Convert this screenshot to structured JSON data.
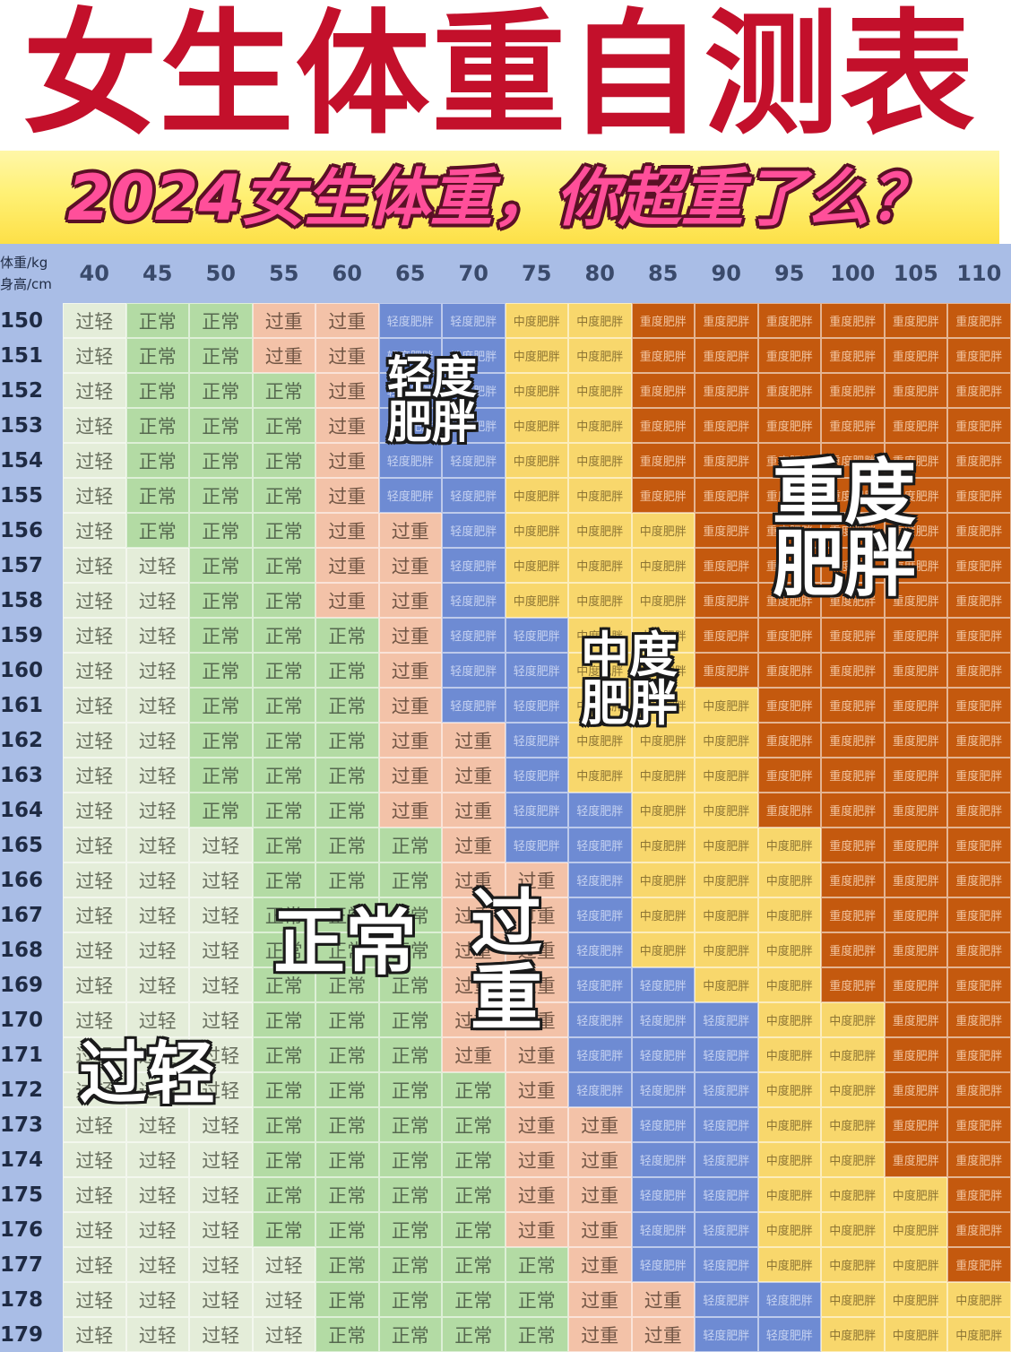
{
  "title": "女生体重自测表",
  "subtitle": "2024女生体重，你超重了么？",
  "table": {
    "corner": {
      "weight_label": "体重/kg",
      "height_label": "身高/cm"
    },
    "weights": [
      "40",
      "45",
      "50",
      "55",
      "60",
      "65",
      "70",
      "75",
      "80",
      "85",
      "90",
      "95",
      "100",
      "105",
      "110"
    ],
    "heights": [
      "150",
      "151",
      "152",
      "153",
      "154",
      "155",
      "156",
      "157",
      "158",
      "159",
      "160",
      "161",
      "162",
      "163",
      "164",
      "165",
      "166",
      "167",
      "168",
      "169",
      "170",
      "171",
      "172",
      "173",
      "174",
      "175",
      "176",
      "177",
      "178",
      "179"
    ],
    "categories": [
      "过轻",
      "正常",
      "过重",
      "轻度肥胖",
      "中度肥胖",
      "重度肥胖"
    ],
    "category_colors": [
      "#e4edd9",
      "#b3dba4",
      "#f3c2a8",
      "#6e8bd3",
      "#f8d76c",
      "#c4590e"
    ],
    "header_color": "#a9bde6",
    "grid": [
      [
        0,
        1,
        1,
        2,
        2,
        3,
        3,
        4,
        4,
        5,
        5,
        5,
        5,
        5,
        5
      ],
      [
        0,
        1,
        1,
        2,
        2,
        3,
        3,
        4,
        4,
        5,
        5,
        5,
        5,
        5,
        5
      ],
      [
        0,
        1,
        1,
        1,
        2,
        3,
        3,
        4,
        4,
        5,
        5,
        5,
        5,
        5,
        5
      ],
      [
        0,
        1,
        1,
        1,
        2,
        3,
        3,
        4,
        4,
        5,
        5,
        5,
        5,
        5,
        5
      ],
      [
        0,
        1,
        1,
        1,
        2,
        3,
        3,
        4,
        4,
        5,
        5,
        5,
        5,
        5,
        5
      ],
      [
        0,
        1,
        1,
        1,
        2,
        3,
        3,
        4,
        4,
        5,
        5,
        5,
        5,
        5,
        5
      ],
      [
        0,
        1,
        1,
        1,
        2,
        2,
        3,
        4,
        4,
        4,
        5,
        5,
        5,
        5,
        5
      ],
      [
        0,
        0,
        1,
        1,
        2,
        2,
        3,
        4,
        4,
        4,
        5,
        5,
        5,
        5,
        5
      ],
      [
        0,
        0,
        1,
        1,
        2,
        2,
        3,
        4,
        4,
        4,
        5,
        5,
        5,
        5,
        5
      ],
      [
        0,
        0,
        1,
        1,
        1,
        2,
        3,
        3,
        4,
        4,
        5,
        5,
        5,
        5,
        5
      ],
      [
        0,
        0,
        1,
        1,
        1,
        2,
        3,
        3,
        4,
        4,
        5,
        5,
        5,
        5,
        5
      ],
      [
        0,
        0,
        1,
        1,
        1,
        2,
        3,
        3,
        4,
        4,
        4,
        5,
        5,
        5,
        5
      ],
      [
        0,
        0,
        1,
        1,
        1,
        2,
        2,
        3,
        4,
        4,
        4,
        5,
        5,
        5,
        5
      ],
      [
        0,
        0,
        1,
        1,
        1,
        2,
        2,
        3,
        4,
        4,
        4,
        5,
        5,
        5,
        5
      ],
      [
        0,
        0,
        1,
        1,
        1,
        2,
        2,
        3,
        3,
        4,
        4,
        5,
        5,
        5,
        5
      ],
      [
        0,
        0,
        0,
        1,
        1,
        1,
        2,
        3,
        3,
        4,
        4,
        4,
        5,
        5,
        5
      ],
      [
        0,
        0,
        0,
        1,
        1,
        1,
        2,
        2,
        3,
        4,
        4,
        4,
        5,
        5,
        5
      ],
      [
        0,
        0,
        0,
        1,
        1,
        1,
        2,
        2,
        3,
        4,
        4,
        4,
        5,
        5,
        5
      ],
      [
        0,
        0,
        0,
        1,
        1,
        1,
        2,
        2,
        3,
        4,
        4,
        4,
        5,
        5,
        5
      ],
      [
        0,
        0,
        0,
        1,
        1,
        1,
        2,
        2,
        3,
        3,
        4,
        4,
        5,
        5,
        5
      ],
      [
        0,
        0,
        0,
        1,
        1,
        1,
        2,
        2,
        3,
        3,
        3,
        4,
        4,
        5,
        5
      ],
      [
        0,
        0,
        0,
        1,
        1,
        1,
        2,
        2,
        3,
        3,
        3,
        4,
        4,
        5,
        5
      ],
      [
        0,
        0,
        0,
        1,
        1,
        1,
        1,
        2,
        3,
        3,
        3,
        4,
        4,
        5,
        5
      ],
      [
        0,
        0,
        0,
        1,
        1,
        1,
        1,
        2,
        2,
        3,
        3,
        4,
        4,
        5,
        5
      ],
      [
        0,
        0,
        0,
        1,
        1,
        1,
        1,
        2,
        2,
        3,
        3,
        4,
        4,
        5,
        5
      ],
      [
        0,
        0,
        0,
        1,
        1,
        1,
        1,
        2,
        2,
        3,
        3,
        4,
        4,
        4,
        5
      ],
      [
        0,
        0,
        0,
        1,
        1,
        1,
        1,
        2,
        2,
        3,
        3,
        4,
        4,
        4,
        5
      ],
      [
        0,
        0,
        0,
        0,
        1,
        1,
        1,
        1,
        2,
        3,
        3,
        4,
        4,
        4,
        5
      ],
      [
        0,
        0,
        0,
        0,
        1,
        1,
        1,
        1,
        2,
        2,
        3,
        3,
        4,
        4,
        4
      ],
      [
        0,
        0,
        0,
        0,
        1,
        1,
        1,
        1,
        2,
        2,
        3,
        3,
        4,
        4,
        4
      ]
    ]
  },
  "overlays": {
    "mild_obese": [
      "轻度",
      "肥胖"
    ],
    "severe_obese": [
      "重度",
      "肥胖"
    ],
    "moderate_obese": [
      "中度",
      "肥胖"
    ],
    "normal": "正常",
    "overweight": [
      "过",
      "重"
    ],
    "underweight": "过轻"
  }
}
